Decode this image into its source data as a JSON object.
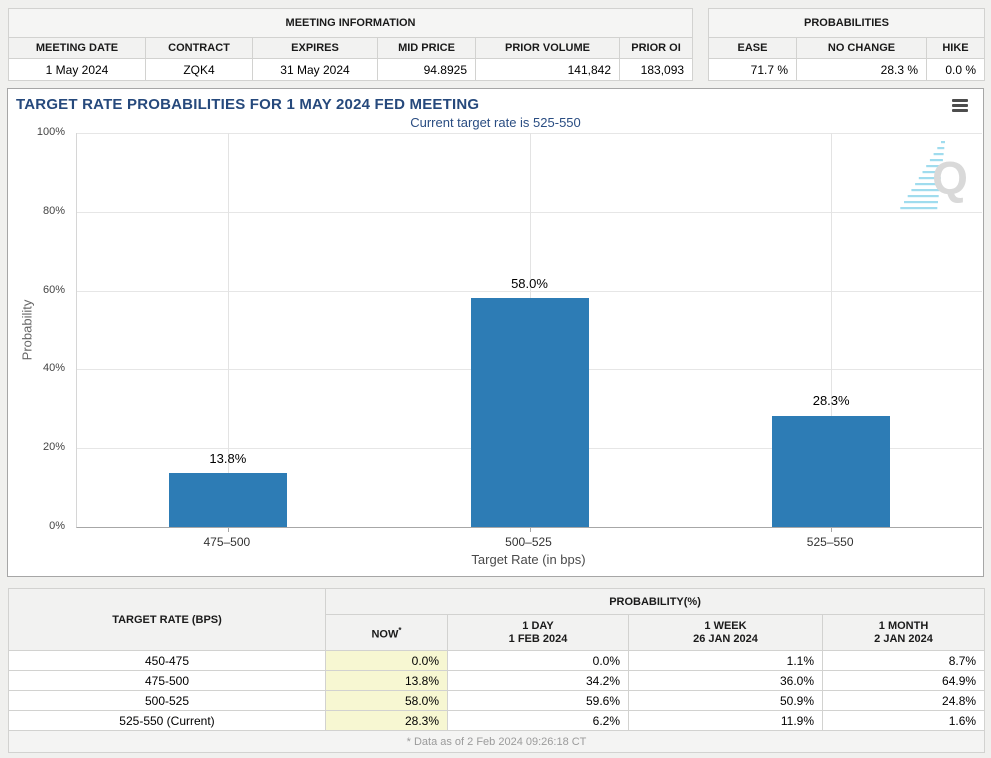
{
  "meeting_info_table": {
    "title": "MEETING INFORMATION",
    "columns": [
      {
        "label": "MEETING DATE",
        "value": "1 May 2024"
      },
      {
        "label": "CONTRACT",
        "value": "ZQK4"
      },
      {
        "label": "EXPIRES",
        "value": "31 May 2024"
      },
      {
        "label": "MID PRICE",
        "value": "94.8925"
      },
      {
        "label": "PRIOR VOLUME",
        "value": "141,842"
      },
      {
        "label": "PRIOR OI",
        "value": "183,093"
      }
    ]
  },
  "probabilities_table": {
    "title": "PROBABILITIES",
    "columns": [
      {
        "label": "EASE",
        "value": "71.7 %"
      },
      {
        "label": "NO CHANGE",
        "value": "28.3 %"
      },
      {
        "label": "HIKE",
        "value": "0.0 %"
      }
    ]
  },
  "chart_data": {
    "type": "bar",
    "title": "TARGET RATE PROBABILITIES FOR 1 MAY 2024 FED MEETING",
    "subtitle": "Current target rate is 525-550",
    "categories": [
      "475–500",
      "500–525",
      "525–550"
    ],
    "values": [
      13.8,
      58.0,
      28.3
    ],
    "data_labels": [
      "13.8%",
      "58.0%",
      "28.3%"
    ],
    "xlabel": "Target Rate (in bps)",
    "ylabel": "Probability",
    "ylim": [
      0,
      100
    ],
    "ytick_step": 20,
    "yticks": [
      "0%",
      "20%",
      "40%",
      "60%",
      "80%",
      "100%"
    ],
    "bar_color": "#2d7cb5",
    "grid": true,
    "legend": "none",
    "watermark_letter": "Q"
  },
  "history_table": {
    "rate_header": "TARGET RATE (BPS)",
    "group_header": "PROBABILITY(%)",
    "now_label": "NOW",
    "now_asterisk": "*",
    "columns": [
      {
        "label": "1 DAY",
        "date": "1 FEB 2024"
      },
      {
        "label": "1 WEEK",
        "date": "26 JAN 2024"
      },
      {
        "label": "1 MONTH",
        "date": "2 JAN 2024"
      }
    ],
    "rows": [
      {
        "rate": "450-475",
        "now": "0.0%",
        "values": [
          "0.0%",
          "1.1%",
          "8.7%"
        ]
      },
      {
        "rate": "475-500",
        "now": "13.8%",
        "values": [
          "34.2%",
          "36.0%",
          "64.9%"
        ]
      },
      {
        "rate": "500-525",
        "now": "58.0%",
        "values": [
          "59.6%",
          "50.9%",
          "24.8%"
        ]
      },
      {
        "rate": "525-550 (Current)",
        "now": "28.3%",
        "values": [
          "6.2%",
          "11.9%",
          "1.6%"
        ]
      }
    ],
    "footnote": "* Data as of 2 Feb 2024 09:26:18 CT",
    "highlight_color": "#f7f7d2"
  }
}
